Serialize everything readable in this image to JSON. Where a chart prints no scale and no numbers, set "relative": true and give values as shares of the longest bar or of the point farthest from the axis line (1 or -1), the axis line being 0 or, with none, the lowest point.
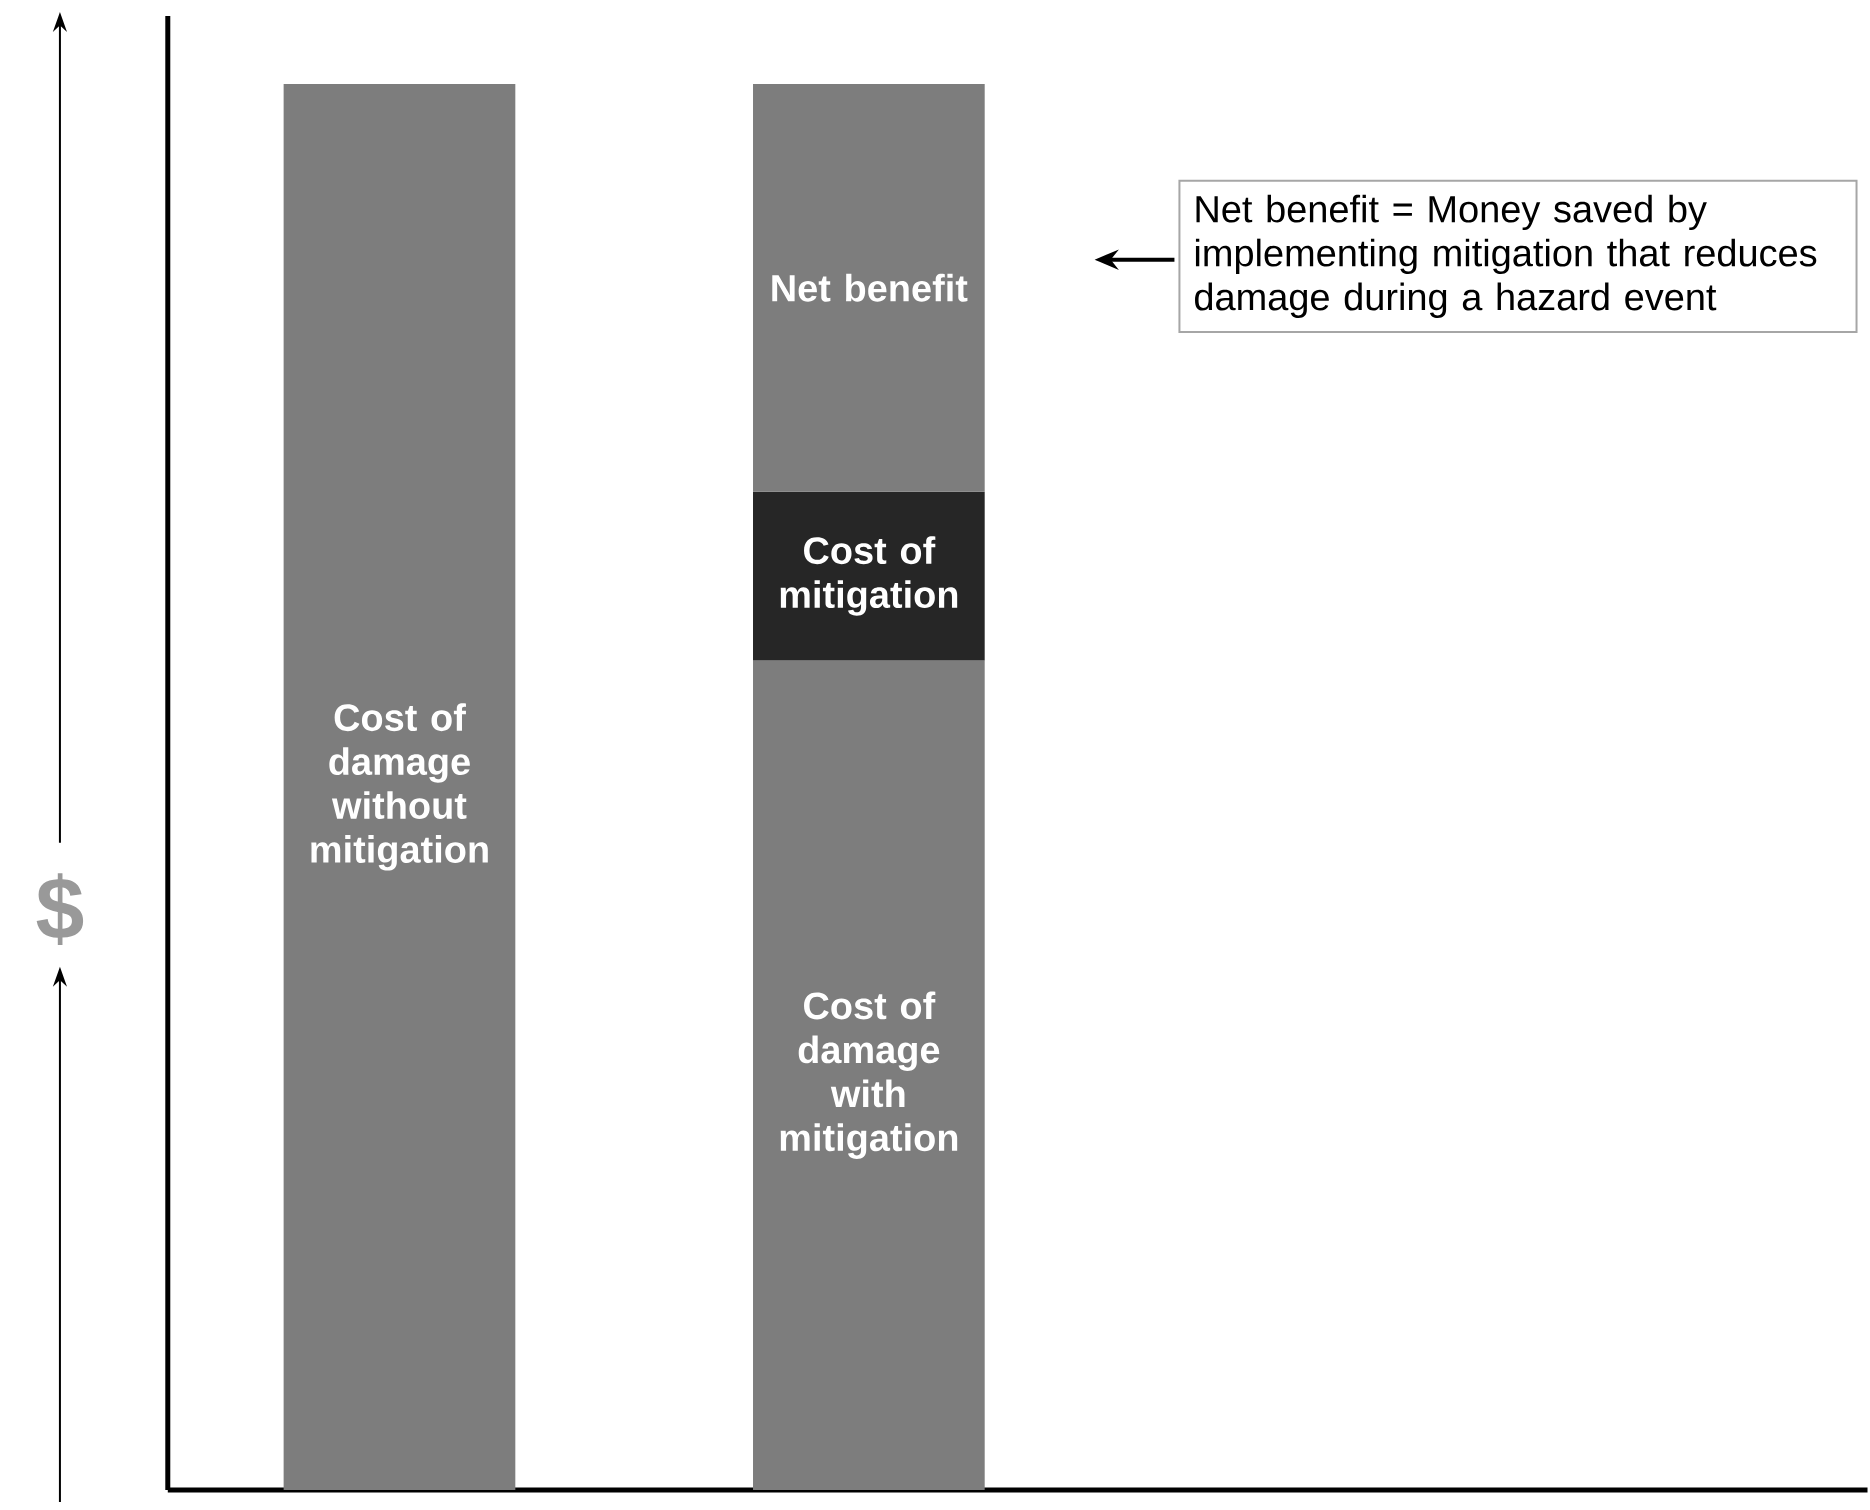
{
  "chart_data": {
    "type": "bar",
    "stacked": true,
    "relative": true,
    "ylabel": "$",
    "categories": [
      null,
      null
    ],
    "series": [
      {
        "name": "Cost of damage without mitigation",
        "color": "#7d7d7d",
        "values": [
          1,
          null
        ]
      },
      {
        "name": "Cost of damage with mitigation",
        "color": "#7d7d7d",
        "values": [
          null,
          0.59
        ]
      },
      {
        "name": "Cost of mitigation",
        "color": "#262626",
        "values": [
          null,
          0.12
        ]
      },
      {
        "name": "Net benefit",
        "color": "#7d7d7d",
        "values": [
          null,
          0.29
        ]
      }
    ],
    "annotations": [
      "Net benefit = Money saved by implementing mitigation that reduces damage during a hazard event"
    ]
  }
}
